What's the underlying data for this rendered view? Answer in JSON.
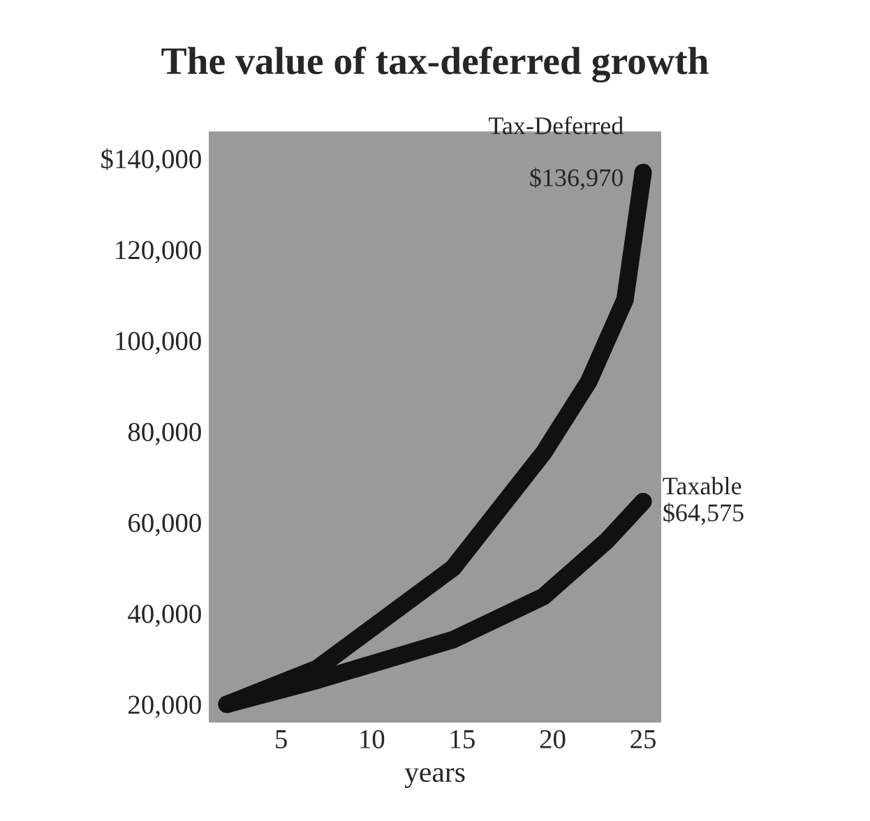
{
  "chart_data": {
    "type": "line",
    "title": "The value of tax-deferred growth",
    "xlabel": "years",
    "series": [
      {
        "name": "Tax-Deferred",
        "color": "#111111",
        "x": [
          2,
          7,
          14.5,
          19.5,
          22,
          24,
          25
        ],
        "values": [
          20000,
          27900,
          50000,
          75300,
          91000,
          109000,
          136970
        ]
      },
      {
        "name": "Taxable",
        "color": "#111111",
        "x": [
          2,
          7,
          14.5,
          19.5,
          23,
          25
        ],
        "values": [
          20000,
          25300,
          34200,
          43700,
          56000,
          64575
        ]
      }
    ],
    "annotations": [
      {
        "text": "$136,970",
        "x": 25,
        "y": 136970
      },
      {
        "text": "$64,575",
        "x": 25,
        "y": 64575
      }
    ],
    "xlim": [
      1,
      26
    ],
    "xticks": [
      5,
      10,
      15,
      20,
      25
    ],
    "ylim": [
      16000,
      146000
    ],
    "yticks": [
      {
        "value": 20000,
        "label": "20,000"
      },
      {
        "value": 40000,
        "label": "40,000"
      },
      {
        "value": 60000,
        "label": "60,000"
      },
      {
        "value": 80000,
        "label": "80,000"
      },
      {
        "value": 100000,
        "label": "100,000"
      },
      {
        "value": 120000,
        "label": "120,000"
      },
      {
        "value": 140000,
        "label": "$140,000"
      }
    ],
    "grid": false,
    "legend": false,
    "marker": "none",
    "line_style": "solid"
  }
}
